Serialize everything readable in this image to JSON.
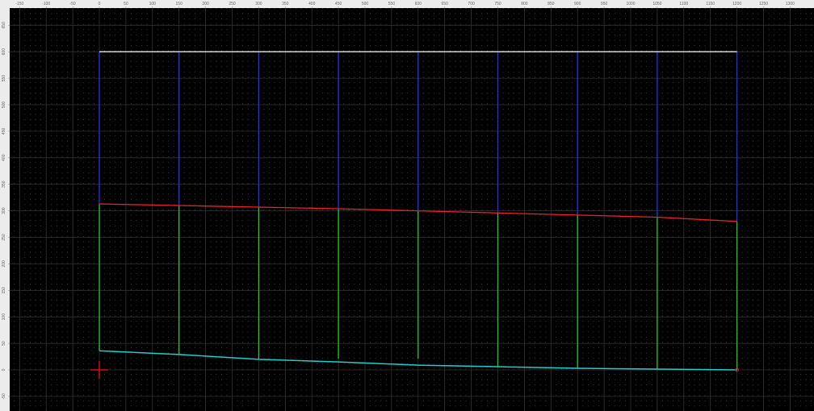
{
  "rulers": {
    "x_ticks": [
      -150,
      -100,
      -50,
      0,
      50,
      100,
      150,
      200,
      250,
      300,
      350,
      400,
      450,
      500,
      550,
      600,
      650,
      700,
      750,
      800,
      850,
      900,
      950,
      1000,
      1050,
      1100,
      1150,
      1200,
      1250,
      1300
    ],
    "y_ticks": [
      650,
      600,
      550,
      500,
      450,
      400,
      350,
      300,
      250,
      200,
      150,
      100,
      50,
      0,
      -50
    ]
  },
  "drawing": {
    "grid": {
      "minor": 10,
      "major": 50,
      "visible": true
    },
    "colors": {
      "top": "#e8e8e8",
      "upper_verticals": "#2233ee",
      "red_line": "#ee2222",
      "lower_verticals": "#22cc22",
      "bottom_curve": "#22cccc",
      "origin": "#cc1111"
    },
    "top_line": {
      "y": 600,
      "x_from": 0,
      "x_to": 1200
    },
    "stations": [
      0,
      150,
      300,
      450,
      600,
      750,
      900,
      1050,
      1200
    ],
    "red_line_y": [
      313,
      310,
      307,
      304,
      300,
      296,
      292,
      288,
      280
    ],
    "bottom_curve_y": [
      36,
      29,
      20,
      15,
      9,
      6,
      3,
      1.5,
      0
    ],
    "lower_vertical_bottom_y": [
      36,
      29,
      20,
      21,
      21,
      6,
      3,
      1.5,
      0
    ],
    "origin_marker": {
      "x": 0,
      "y": 0
    }
  }
}
